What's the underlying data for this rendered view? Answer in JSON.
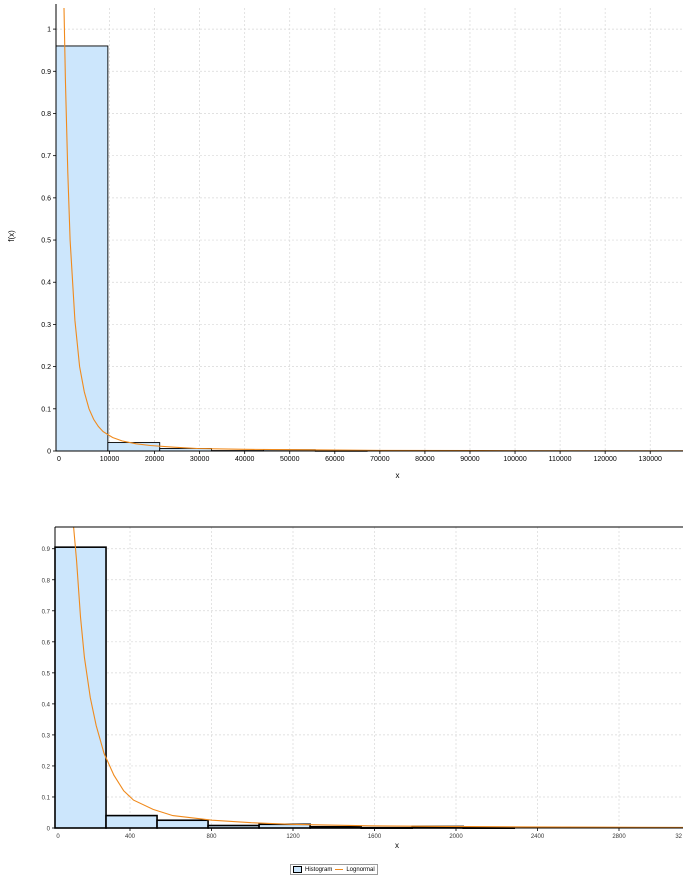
{
  "colors": {
    "bar_fill": "#cce6fc",
    "bar_stroke": "#000000",
    "curve": "#f08a1c",
    "grid": "#d7d7d7",
    "axis": "#000000",
    "background": "#ffffff"
  },
  "chart_data": [
    {
      "type": "bar",
      "title": "",
      "xlabel": "x",
      "ylabel": "f(x)",
      "xlim": [
        0,
        133000
      ],
      "ylim": [
        0,
        1.05
      ],
      "grid": true,
      "x_ticks": [
        "10000",
        "20000",
        "30000",
        "40000",
        "50000",
        "60000",
        "70000",
        "80000",
        "90000",
        "100000",
        "110000",
        "120000",
        "130000"
      ],
      "y_ticks": [
        "0",
        "0.1",
        "0.2",
        "0.3",
        "0.4",
        "0.5",
        "0.6",
        "0.7",
        "0.8",
        "0.9",
        "1"
      ],
      "bins": [
        {
          "x0": 0,
          "x1": 11000,
          "value": 0.96
        },
        {
          "x0": 11000,
          "x1": 22000,
          "value": 0.02
        },
        {
          "x0": 22000,
          "x1": 33000,
          "value": 0.006
        },
        {
          "x0": 33000,
          "x1": 44000,
          "value": 0.001
        },
        {
          "x0": 44000,
          "x1": 55000,
          "value": 0.003
        },
        {
          "x0": 55000,
          "x1": 66000,
          "value": 0.0005
        }
      ],
      "series": [
        {
          "name": "Lognormal",
          "x": [
            1700,
            2000,
            2500,
            3000,
            4000,
            5000,
            6000,
            7000,
            8000,
            9000,
            10000,
            12000,
            14000,
            17000,
            20000,
            25000,
            30000,
            40000,
            50000,
            70000,
            90000,
            133000
          ],
          "y": [
            1.05,
            0.88,
            0.66,
            0.5,
            0.31,
            0.2,
            0.14,
            0.1,
            0.075,
            0.058,
            0.046,
            0.032,
            0.024,
            0.017,
            0.013,
            0.009,
            0.006,
            0.004,
            0.003,
            0.0015,
            0.001,
            0.0004
          ]
        }
      ]
    },
    {
      "type": "bar",
      "title": "",
      "xlabel": "x",
      "ylabel": "",
      "xlim": [
        0,
        3200
      ],
      "ylim": [
        0,
        0.97
      ],
      "grid": true,
      "x_ticks": [
        "400",
        "800",
        "1200",
        "1600",
        "2000",
        "2400",
        "2800",
        "32"
      ],
      "y_ticks": [
        "0",
        "0.1",
        "0.2",
        "0.3",
        "0.4",
        "0.5",
        "0.6",
        "0.7",
        "0.8",
        "0.9"
      ],
      "bins": [
        {
          "x0": 0,
          "x1": 260,
          "value": 0.905
        },
        {
          "x0": 260,
          "x1": 520,
          "value": 0.04
        },
        {
          "x0": 520,
          "x1": 780,
          "value": 0.025
        },
        {
          "x0": 780,
          "x1": 1040,
          "value": 0.008
        },
        {
          "x0": 1040,
          "x1": 1300,
          "value": 0.012
        },
        {
          "x0": 1300,
          "x1": 1560,
          "value": 0.004
        },
        {
          "x0": 1560,
          "x1": 1820,
          "value": 0.001
        },
        {
          "x0": 1820,
          "x1": 2080,
          "value": 0.005
        },
        {
          "x0": 2080,
          "x1": 2340,
          "value": 0.001
        }
      ],
      "series": [
        {
          "name": "Lognormal",
          "x": [
            95,
            110,
            130,
            150,
            180,
            210,
            250,
            300,
            350,
            400,
            500,
            600,
            800,
            1000,
            1200,
            1600,
            2000,
            2400,
            2800,
            3200
          ],
          "y": [
            0.97,
            0.86,
            0.68,
            0.55,
            0.42,
            0.33,
            0.24,
            0.17,
            0.12,
            0.09,
            0.06,
            0.04,
            0.025,
            0.017,
            0.012,
            0.007,
            0.005,
            0.0035,
            0.0025,
            0.002
          ]
        }
      ]
    }
  ],
  "legend": {
    "items": [
      {
        "label": "Histogram",
        "kind": "box"
      },
      {
        "label": "Lognormal",
        "kind": "line"
      }
    ]
  }
}
